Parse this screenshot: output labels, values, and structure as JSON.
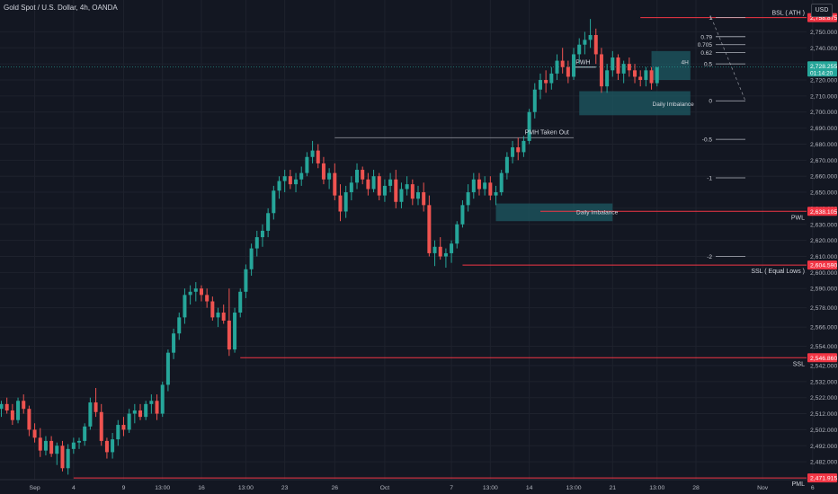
{
  "header": {
    "symbol_title": "Gold Spot / U.S. Dollar, 4h, OANDA",
    "currency": "USD"
  },
  "colors": {
    "background": "#131722",
    "up": "#26a69a",
    "down": "#ef5350",
    "grid": "#1e222d",
    "level": "#f23645",
    "axis_text": "#b2b5be",
    "zone": "#1e5a63"
  },
  "chart_data": {
    "type": "candlestick",
    "title": "Gold Spot / U.S. Dollar, 4h, OANDA",
    "ylim": [
      2472,
      2762
    ],
    "y_ticks": [
      "2,750.000",
      "2,740.000",
      "2,730.000",
      "2,720.000",
      "2,710.000",
      "2,700.000",
      "2,690.000",
      "2,680.000",
      "2,670.000",
      "2,660.000",
      "2,650.000",
      "2,640.000",
      "2,630.000",
      "2,620.000",
      "2,610.000",
      "2,600.000",
      "2,590.000",
      "2,578.000",
      "2,566.000",
      "2,554.000",
      "2,542.000",
      "2,532.000",
      "2,522.000",
      "2,512.000",
      "2,502.000",
      "2,492.000",
      "2,482.000"
    ],
    "x_ticks": [
      {
        "label": "Sep",
        "bar": 6
      },
      {
        "label": "4",
        "bar": 13
      },
      {
        "label": "9",
        "bar": 22
      },
      {
        "label": "13:00",
        "bar": 29
      },
      {
        "label": "16",
        "bar": 36
      },
      {
        "label": "13:00",
        "bar": 44
      },
      {
        "label": "23",
        "bar": 51
      },
      {
        "label": "26",
        "bar": 60
      },
      {
        "label": "Oct",
        "bar": 69
      },
      {
        "label": "7",
        "bar": 81
      },
      {
        "label": "13:00",
        "bar": 88
      },
      {
        "label": "14",
        "bar": 95
      },
      {
        "label": "13:00",
        "bar": 103
      },
      {
        "label": "21",
        "bar": 110
      },
      {
        "label": "13:00",
        "bar": 118
      },
      {
        "label": "28",
        "bar": 125
      },
      {
        "label": "Nov",
        "bar": 137
      },
      {
        "label": "6",
        "bar": 146
      }
    ],
    "candles": [
      [
        2515,
        2520,
        2510,
        2518
      ],
      [
        2518,
        2522,
        2512,
        2514
      ],
      [
        2514,
        2518,
        2505,
        2508
      ],
      [
        2508,
        2522,
        2506,
        2520
      ],
      [
        2520,
        2524,
        2512,
        2515
      ],
      [
        2515,
        2517,
        2498,
        2502
      ],
      [
        2502,
        2506,
        2494,
        2497
      ],
      [
        2497,
        2503,
        2485,
        2489
      ],
      [
        2489,
        2498,
        2486,
        2495
      ],
      [
        2495,
        2498,
        2485,
        2487
      ],
      [
        2487,
        2494,
        2480,
        2492
      ],
      [
        2492,
        2495,
        2476,
        2478
      ],
      [
        2478,
        2493,
        2474,
        2490
      ],
      [
        2490,
        2497,
        2487,
        2494
      ],
      [
        2494,
        2497,
        2490,
        2495
      ],
      [
        2495,
        2506,
        2492,
        2504
      ],
      [
        2504,
        2522,
        2502,
        2519
      ],
      [
        2519,
        2528,
        2510,
        2513
      ],
      [
        2513,
        2518,
        2492,
        2495
      ],
      [
        2495,
        2497,
        2484,
        2488
      ],
      [
        2488,
        2500,
        2484,
        2496
      ],
      [
        2496,
        2508,
        2492,
        2505
      ],
      [
        2505,
        2510,
        2498,
        2502
      ],
      [
        2502,
        2515,
        2500,
        2512
      ],
      [
        2512,
        2518,
        2506,
        2514
      ],
      [
        2514,
        2518,
        2508,
        2510
      ],
      [
        2510,
        2520,
        2508,
        2518
      ],
      [
        2518,
        2524,
        2512,
        2520
      ],
      [
        2520,
        2524,
        2508,
        2512
      ],
      [
        2512,
        2532,
        2510,
        2530
      ],
      [
        2530,
        2552,
        2526,
        2550
      ],
      [
        2550,
        2565,
        2546,
        2562
      ],
      [
        2562,
        2575,
        2558,
        2572
      ],
      [
        2572,
        2590,
        2568,
        2586
      ],
      [
        2586,
        2592,
        2580,
        2588
      ],
      [
        2588,
        2594,
        2582,
        2590
      ],
      [
        2590,
        2592,
        2582,
        2586
      ],
      [
        2586,
        2590,
        2578,
        2582
      ],
      [
        2582,
        2585,
        2570,
        2572
      ],
      [
        2572,
        2578,
        2566,
        2575
      ],
      [
        2575,
        2580,
        2568,
        2570
      ],
      [
        2570,
        2590,
        2548,
        2552
      ],
      [
        2552,
        2578,
        2550,
        2575
      ],
      [
        2575,
        2590,
        2572,
        2588
      ],
      [
        2588,
        2605,
        2584,
        2602
      ],
      [
        2602,
        2618,
        2598,
        2615
      ],
      [
        2615,
        2626,
        2610,
        2622
      ],
      [
        2622,
        2630,
        2616,
        2626
      ],
      [
        2626,
        2640,
        2622,
        2637
      ],
      [
        2637,
        2654,
        2633,
        2651
      ],
      [
        2651,
        2660,
        2646,
        2657
      ],
      [
        2657,
        2664,
        2650,
        2660
      ],
      [
        2660,
        2664,
        2652,
        2655
      ],
      [
        2655,
        2662,
        2650,
        2658
      ],
      [
        2658,
        2666,
        2654,
        2662
      ],
      [
        2662,
        2675,
        2660,
        2672
      ],
      [
        2672,
        2682,
        2668,
        2676
      ],
      [
        2676,
        2680,
        2665,
        2668
      ],
      [
        2668,
        2672,
        2655,
        2658
      ],
      [
        2658,
        2665,
        2652,
        2662
      ],
      [
        2662,
        2668,
        2645,
        2648
      ],
      [
        2648,
        2655,
        2632,
        2638
      ],
      [
        2638,
        2654,
        2634,
        2650
      ],
      [
        2650,
        2660,
        2645,
        2656
      ],
      [
        2656,
        2668,
        2652,
        2664
      ],
      [
        2664,
        2666,
        2655,
        2658
      ],
      [
        2658,
        2662,
        2648,
        2652
      ],
      [
        2652,
        2664,
        2650,
        2660
      ],
      [
        2660,
        2662,
        2645,
        2648
      ],
      [
        2648,
        2658,
        2644,
        2654
      ],
      [
        2654,
        2662,
        2650,
        2658
      ],
      [
        2658,
        2664,
        2640,
        2644
      ],
      [
        2644,
        2656,
        2640,
        2652
      ],
      [
        2652,
        2660,
        2648,
        2655
      ],
      [
        2655,
        2658,
        2642,
        2646
      ],
      [
        2646,
        2654,
        2642,
        2650
      ],
      [
        2650,
        2656,
        2638,
        2642
      ],
      [
        2642,
        2648,
        2610,
        2612
      ],
      [
        2612,
        2620,
        2604,
        2616
      ],
      [
        2616,
        2622,
        2608,
        2610
      ],
      [
        2610,
        2615,
        2603,
        2612
      ],
      [
        2612,
        2620,
        2606,
        2618
      ],
      [
        2618,
        2632,
        2615,
        2630
      ],
      [
        2630,
        2645,
        2628,
        2642
      ],
      [
        2642,
        2655,
        2638,
        2650
      ],
      [
        2650,
        2662,
        2646,
        2658
      ],
      [
        2658,
        2662,
        2648,
        2652
      ],
      [
        2652,
        2660,
        2648,
        2656
      ],
      [
        2656,
        2660,
        2645,
        2648
      ],
      [
        2648,
        2654,
        2642,
        2650
      ],
      [
        2650,
        2664,
        2648,
        2662
      ],
      [
        2662,
        2675,
        2658,
        2672
      ],
      [
        2672,
        2682,
        2668,
        2678
      ],
      [
        2678,
        2684,
        2670,
        2675
      ],
      [
        2675,
        2685,
        2672,
        2682
      ],
      [
        2682,
        2702,
        2680,
        2700
      ],
      [
        2700,
        2718,
        2696,
        2714
      ],
      [
        2714,
        2724,
        2708,
        2720
      ],
      [
        2720,
        2726,
        2712,
        2718
      ],
      [
        2718,
        2728,
        2714,
        2724
      ],
      [
        2724,
        2736,
        2720,
        2732
      ],
      [
        2732,
        2740,
        2724,
        2728
      ],
      [
        2728,
        2732,
        2718,
        2722
      ],
      [
        2722,
        2740,
        2720,
        2736
      ],
      [
        2736,
        2746,
        2730,
        2742
      ],
      [
        2742,
        2750,
        2736,
        2745
      ],
      [
        2745,
        2758,
        2740,
        2748
      ],
      [
        2748,
        2752,
        2730,
        2736
      ],
      [
        2736,
        2740,
        2712,
        2716
      ],
      [
        2716,
        2730,
        2712,
        2726
      ],
      [
        2726,
        2738,
        2722,
        2734
      ],
      [
        2734,
        2736,
        2720,
        2724
      ],
      [
        2724,
        2732,
        2718,
        2730
      ],
      [
        2730,
        2734,
        2722,
        2726
      ],
      [
        2726,
        2730,
        2718,
        2722
      ],
      [
        2722,
        2726,
        2716,
        2720
      ],
      [
        2720,
        2728,
        2716,
        2726
      ],
      [
        2726,
        2728,
        2714,
        2718
      ],
      [
        2718,
        2728,
        2716,
        2728
      ]
    ],
    "levels": [
      {
        "label": "BSL ( ATH )",
        "price": "2,758.875",
        "value": 2758.875
      },
      {
        "label": "PWL",
        "price": "2,638.105",
        "value": 2638.105
      },
      {
        "label": "SSL ( Equal Lows )",
        "price": "2,604.590",
        "value": 2604.59
      },
      {
        "label": "SSL",
        "price": "2,546.860",
        "value": 2546.86
      },
      {
        "label": "PML",
        "price": "2,471.915",
        "value": 2471.915
      }
    ],
    "current_price": {
      "value": 2728.255,
      "price": "2,728.255",
      "countdown": "01:14:20"
    },
    "annotations": {
      "pwh": "PWH",
      "pmh_taken_out": "PMH Taken Out",
      "daily_imbalance_1": "Daily Imbalance",
      "daily_imbalance_2": "Daily Imbalance",
      "zone_4h": "4H"
    },
    "fib_levels": [
      {
        "label": "1",
        "value": 2759
      },
      {
        "label": "0.79",
        "value": 2747
      },
      {
        "label": "0.705",
        "value": 2742
      },
      {
        "label": "0.62",
        "value": 2737
      },
      {
        "label": "0.5",
        "value": 2730
      },
      {
        "label": "0",
        "value": 2707
      },
      {
        "label": "-0.5",
        "value": 2683
      },
      {
        "label": "-1",
        "value": 2659
      },
      {
        "label": "-2",
        "value": 2610
      }
    ]
  }
}
